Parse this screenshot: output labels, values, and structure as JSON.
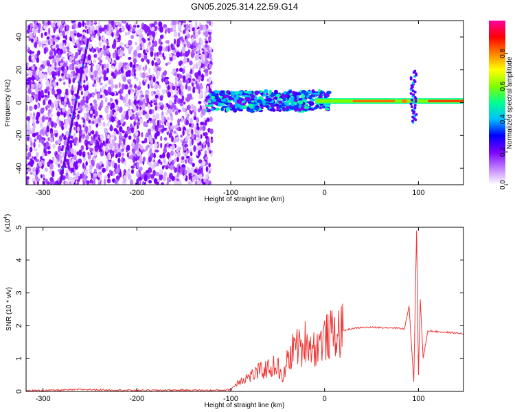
{
  "title": "GN05.2025.314.22.59.G14",
  "chart_data": [
    {
      "type": "heatmap",
      "description_of_content": "spectrogram",
      "xlabel": "Height of straight line (km)",
      "ylabel": "Frequency (Hz)",
      "xlim": [
        -318,
        148
      ],
      "ylim": [
        -50,
        50
      ],
      "x_ticks": [
        -300,
        -200,
        -100,
        0,
        100
      ],
      "y_ticks": [
        -40,
        -20,
        0,
        20,
        40
      ],
      "colorbar": {
        "label": "Normalized spectral amplitude",
        "range": [
          0.0,
          1.0
        ],
        "ticks": [
          "0.0",
          "0.2",
          "0.4",
          "0.6",
          "0.8"
        ],
        "colors": [
          "#ffffff",
          "#c080ff",
          "#7a00ff",
          "#0000ff",
          "#00c0ff",
          "#00ff90",
          "#80ff00",
          "#ffff00",
          "#ff8000",
          "#ff0000",
          "#ff00a0"
        ]
      },
      "features": {
        "noise_region_x": [
          -318,
          -120
        ],
        "carrier_band_x": [
          -125,
          148
        ],
        "carrier_frequency": 1,
        "burst_x": 95
      }
    },
    {
      "type": "line",
      "xlabel": "Height of straight line (km)",
      "ylabel": "SNR (10 * v/v)",
      "y_multiplier": "(x10",
      "y_multiplier_exp": "4",
      "xlim": [
        -318,
        148
      ],
      "ylim": [
        0,
        5
      ],
      "x_ticks": [
        -300,
        -200,
        -100,
        0,
        100
      ],
      "y_ticks": [
        0,
        1,
        2,
        3,
        4,
        5
      ],
      "line_color": "#ee3333",
      "series": [
        {
          "x": [
            -318,
            -300,
            -280,
            -260,
            -240,
            -200,
            -150,
            -120,
            -100,
            -90,
            -80,
            -70,
            -60,
            -50,
            -45,
            -40,
            -35,
            -30,
            -25,
            -20,
            -15,
            -10,
            -5,
            0,
            5,
            10,
            20,
            30,
            40,
            60,
            80,
            85,
            90,
            95,
            98,
            100,
            102,
            105,
            110,
            120,
            130,
            140,
            148
          ],
          "y": [
            0.02,
            0.03,
            0.04,
            0.06,
            0.05,
            0.03,
            0.04,
            0.03,
            0.05,
            0.35,
            0.45,
            0.6,
            0.7,
            0.8,
            0.3,
            0.9,
            1.2,
            1.5,
            1.2,
            1.6,
            1.4,
            1.3,
            1.5,
            1.6,
            1.7,
            1.75,
            1.85,
            1.92,
            1.95,
            1.95,
            1.93,
            1.9,
            2.6,
            0.3,
            4.9,
            0.5,
            2.8,
            1.0,
            1.85,
            1.82,
            1.8,
            1.78,
            1.76
          ]
        }
      ]
    }
  ]
}
